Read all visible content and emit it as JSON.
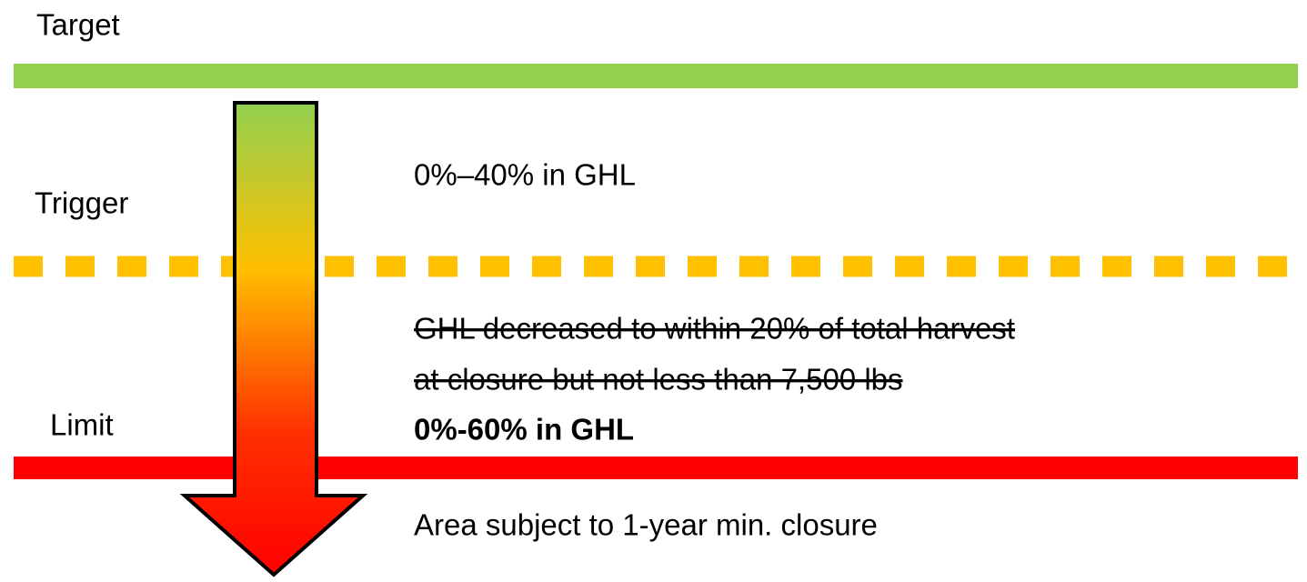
{
  "levels": {
    "target": "Target",
    "trigger": "Trigger",
    "limit": "Limit"
  },
  "zones": [
    {
      "text": "0%–40% in GHL"
    },
    {
      "struck": [
        "GHL decreased to within 20% of total harvest",
        "at closure but not less than 7,500 lbs"
      ],
      "text": "0%-60% in GHL"
    },
    {
      "text": "Area subject to 1-year min. closure"
    }
  ]
}
